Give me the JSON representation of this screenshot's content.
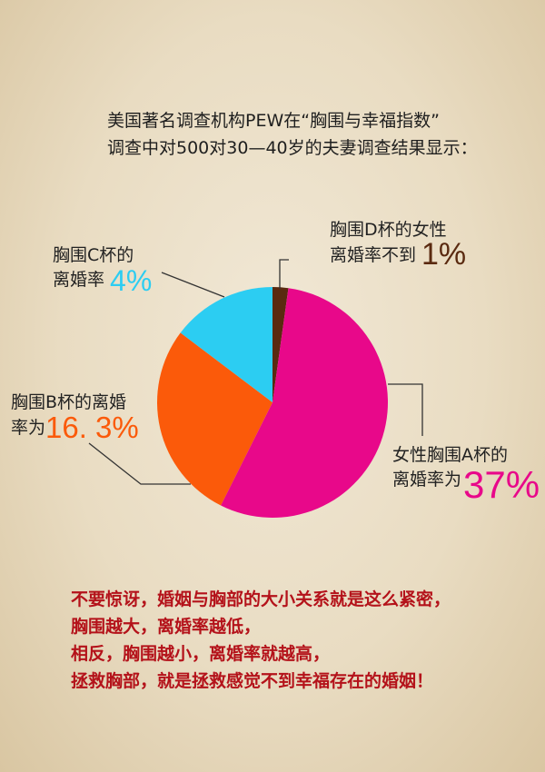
{
  "intro": {
    "line1": "美国著名调查机构PEW在“胸围与幸福指数”",
    "line2": "调查中对500对30—40岁的夫妻调查结果显示："
  },
  "chart_data": {
    "type": "pie",
    "slices": [
      {
        "key": "D",
        "label_line1": "胸围D杯的女性",
        "label_line2": "离婚率不到",
        "value_label": "1%",
        "value": 1,
        "share_percent": 2.2,
        "color": "#5a2a10"
      },
      {
        "key": "A",
        "label_line1": "女性胸围A杯的",
        "label_line2": "离婚率为",
        "value_label": "37%",
        "value": 37,
        "share_percent": 55.2,
        "color": "#e8088a"
      },
      {
        "key": "B",
        "label_line1": "胸围B杯的离婚",
        "label_line2": "率为",
        "value_label": "16. 3%",
        "value": 16.3,
        "share_percent": 27.9,
        "color": "#fb5a0a"
      },
      {
        "key": "C",
        "label_line1": "胸围C杯的",
        "label_line2": "离婚率",
        "value_label": "4%",
        "value": 4,
        "share_percent": 14.7,
        "color": "#2ccdf2"
      }
    ]
  },
  "closing": {
    "lines": [
      "不要惊讶，婚姻与胸部的大小关系就是这么紧密，",
      "胸围越大，离婚率越低，",
      "相反，胸围越小，离婚率就越高，",
      "拯救胸部，就是拯救感觉不到幸福存在的婚姻！"
    ]
  }
}
